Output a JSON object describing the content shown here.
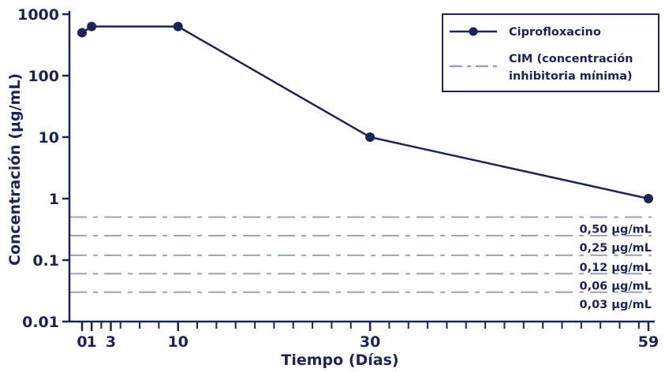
{
  "chart_data": {
    "type": "line",
    "xlabel": "Tiempo (Días)",
    "ylabel": "Concentración (μg/mL)",
    "y_scale": "log",
    "ylim": [
      0.01,
      1000
    ],
    "xlim": [
      0,
      59
    ],
    "x_ticks": [
      0,
      1,
      3,
      10,
      30,
      59
    ],
    "x_tick_labels": [
      "0",
      "1",
      "3",
      "10",
      "30",
      "59"
    ],
    "y_ticks": [
      0.01,
      0.1,
      1,
      10,
      100,
      1000
    ],
    "y_tick_labels": [
      "0.01",
      "0.1",
      "1",
      "10",
      "100",
      "1000"
    ],
    "series": [
      {
        "name": "Ciprofloxacino",
        "color": "#1b2452",
        "x": [
          0,
          1,
          10,
          30,
          59
        ],
        "y": [
          500,
          630,
          630,
          10,
          1
        ]
      }
    ],
    "reference_lines": [
      {
        "y": 0.5,
        "label": "0,50 μg/mL"
      },
      {
        "y": 0.25,
        "label": "0,25 μg/mL"
      },
      {
        "y": 0.12,
        "label": "0,12 μg/mL"
      },
      {
        "y": 0.06,
        "label": "0,06 μg/mL"
      },
      {
        "y": 0.03,
        "label": "0,03 μg/mL"
      }
    ],
    "reference_color": "#9aa3b5",
    "legend": {
      "position": "top-right",
      "entries": [
        {
          "label_lines": [
            "Ciprofloxacino"
          ],
          "style": "line-marker"
        },
        {
          "label_lines": [
            "CIM (concentración",
            "inhibitoria mínima)"
          ],
          "style": "dash-dot"
        }
      ]
    }
  }
}
